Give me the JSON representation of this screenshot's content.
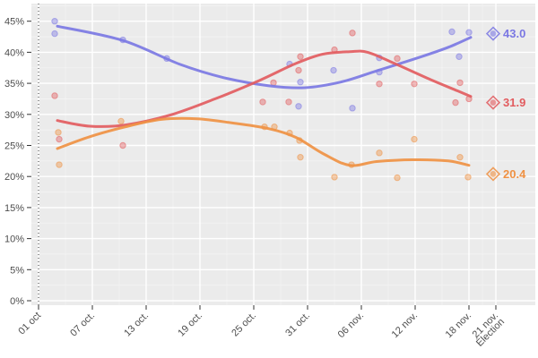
{
  "figure": {
    "background_color": "#ffffff",
    "panel_color": "#ebebeb",
    "grid_major_color": "#ffffff",
    "grid_minor_color": "#f4f4f4",
    "axis_text_color": "#4d4d4d",
    "tick_color": "#333333",
    "start_line_color": "#3a3a3a"
  },
  "chart_data": {
    "type": "scatter",
    "title": "",
    "xlabel": "",
    "ylabel": "",
    "legend": "none",
    "x_axis": {
      "unit": "days since 01 oct",
      "ticks": [
        {
          "day": 0,
          "label": "01 oct"
        },
        {
          "day": 6,
          "label": "07 oct."
        },
        {
          "day": 12,
          "label": "13 oct."
        },
        {
          "day": 18,
          "label": "19 oct."
        },
        {
          "day": 24,
          "label": "25 oct."
        },
        {
          "day": 30,
          "label": "31 oct."
        },
        {
          "day": 36,
          "label": "06 nov."
        },
        {
          "day": 42,
          "label": "12 nov."
        },
        {
          "day": 48,
          "label": "18 nov."
        },
        {
          "day": 51,
          "label": "21 nov.",
          "label2": "Élection"
        }
      ],
      "minor_days": [
        3,
        9,
        15,
        21,
        27,
        33,
        39,
        45,
        49.5
      ]
    },
    "y_axis": {
      "min": 0,
      "max": 45,
      "step": 5,
      "minor_step": 2.5,
      "tick_labels": [
        "0%",
        "5%",
        "10%",
        "15%",
        "20%",
        "25%",
        "30%",
        "35%",
        "40%",
        "45%"
      ]
    },
    "start_line_day": 0,
    "election": {
      "day": 51
    },
    "series": [
      {
        "id": "purple",
        "color": "#7b78e3",
        "final_value": 43.0,
        "final_label": "43.0",
        "trend_line": [
          [
            2.1,
            44.2
          ],
          [
            9.4,
            41.9
          ],
          [
            15.7,
            38.1
          ],
          [
            20.7,
            35.9
          ],
          [
            25.7,
            34.6
          ],
          [
            29.7,
            34.3
          ],
          [
            33.7,
            35.2
          ],
          [
            37.7,
            37.0
          ],
          [
            42.7,
            39.3
          ],
          [
            45.7,
            40.8
          ],
          [
            48.2,
            42.4
          ]
        ],
        "poll_points": [
          [
            1.8,
            45.0
          ],
          [
            1.8,
            43.0
          ],
          [
            9.4,
            42.0
          ],
          [
            14.3,
            39.0
          ],
          [
            28.0,
            38.1
          ],
          [
            29.2,
            35.2
          ],
          [
            29.0,
            31.3
          ],
          [
            32.9,
            37.1
          ],
          [
            35.0,
            31.0
          ],
          [
            38.0,
            39.1
          ],
          [
            38.0,
            36.8
          ],
          [
            46.1,
            43.3
          ],
          [
            46.9,
            39.3
          ],
          [
            48.0,
            43.2
          ]
        ]
      },
      {
        "id": "red",
        "color": "#e25c5f",
        "final_value": 31.9,
        "final_label": "31.9",
        "trend_line": [
          [
            2.1,
            29.0
          ],
          [
            5.7,
            28.1
          ],
          [
            9.7,
            28.3
          ],
          [
            14.7,
            29.9
          ],
          [
            19.7,
            32.5
          ],
          [
            24.7,
            35.5
          ],
          [
            28.7,
            38.2
          ],
          [
            31.7,
            39.7
          ],
          [
            34.7,
            40.1
          ],
          [
            36.7,
            40.0
          ],
          [
            39.7,
            38.2
          ],
          [
            43.7,
            35.6
          ],
          [
            46.7,
            33.8
          ],
          [
            48.2,
            32.9
          ]
        ],
        "poll_points": [
          [
            1.8,
            33.0
          ],
          [
            2.3,
            26.0
          ],
          [
            9.4,
            25.0
          ],
          [
            25.0,
            32.0
          ],
          [
            26.2,
            35.1
          ],
          [
            27.9,
            32.0
          ],
          [
            29.0,
            37.1
          ],
          [
            29.2,
            39.3
          ],
          [
            33.0,
            40.4
          ],
          [
            35.0,
            43.1
          ],
          [
            38.0,
            34.9
          ],
          [
            40.0,
            39.0
          ],
          [
            41.9,
            34.9
          ],
          [
            46.5,
            31.9
          ],
          [
            47.0,
            35.1
          ],
          [
            48.0,
            32.5
          ]
        ]
      },
      {
        "id": "orange",
        "color": "#ef9143",
        "final_value": 20.4,
        "final_label": "20.4",
        "trend_line": [
          [
            2.1,
            24.5
          ],
          [
            5.7,
            26.4
          ],
          [
            9.7,
            28.0
          ],
          [
            13.7,
            29.2
          ],
          [
            17.7,
            29.3
          ],
          [
            21.7,
            28.6
          ],
          [
            25.7,
            27.7
          ],
          [
            28.7,
            26.3
          ],
          [
            31.7,
            23.7
          ],
          [
            34.7,
            21.8
          ],
          [
            37.7,
            22.4
          ],
          [
            41.7,
            22.7
          ],
          [
            45.7,
            22.5
          ],
          [
            48.0,
            21.8
          ]
        ],
        "poll_points": [
          [
            2.2,
            27.1
          ],
          [
            2.3,
            21.9
          ],
          [
            9.2,
            28.9
          ],
          [
            25.2,
            28.0
          ],
          [
            26.3,
            28.0
          ],
          [
            28.0,
            27.0
          ],
          [
            29.1,
            25.8
          ],
          [
            29.2,
            23.1
          ],
          [
            33.0,
            19.9
          ],
          [
            34.9,
            21.9
          ],
          [
            38.0,
            23.8
          ],
          [
            40.0,
            19.8
          ],
          [
            41.9,
            26.0
          ],
          [
            47.0,
            23.1
          ],
          [
            47.9,
            19.9
          ]
        ]
      }
    ]
  }
}
